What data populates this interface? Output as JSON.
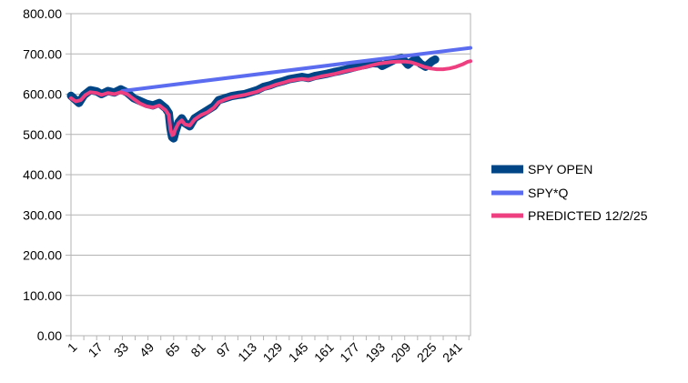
{
  "chart_data": {
    "type": "line",
    "title": "",
    "xlabel": "",
    "ylabel": "",
    "ylim": [
      0,
      800
    ],
    "yticks": [
      "0.00",
      "100.00",
      "200.00",
      "300.00",
      "400.00",
      "500.00",
      "600.00",
      "700.00",
      "800.00"
    ],
    "xlim": [
      1,
      250
    ],
    "xticks": [
      "1",
      "17",
      "33",
      "49",
      "65",
      "81",
      "97",
      "113",
      "129",
      "145",
      "161",
      "177",
      "193",
      "209",
      "225",
      "241"
    ],
    "grid": "horizontal",
    "legend_position": "right",
    "series": [
      {
        "name": "SPY OPEN",
        "color": "#004586",
        "points": [
          [
            1,
            596
          ],
          [
            4,
            585
          ],
          [
            6,
            578
          ],
          [
            9,
            597
          ],
          [
            13,
            610
          ],
          [
            17,
            607
          ],
          [
            20,
            600
          ],
          [
            24,
            608
          ],
          [
            28,
            604
          ],
          [
            32,
            612
          ],
          [
            36,
            604
          ],
          [
            40,
            590
          ],
          [
            44,
            583
          ],
          [
            48,
            576
          ],
          [
            52,
            572
          ],
          [
            56,
            578
          ],
          [
            60,
            565
          ],
          [
            62,
            553
          ],
          [
            63,
            515
          ],
          [
            64,
            493
          ],
          [
            65,
            490
          ],
          [
            66,
            505
          ],
          [
            68,
            530
          ],
          [
            70,
            540
          ],
          [
            72,
            528
          ],
          [
            75,
            520
          ],
          [
            78,
            540
          ],
          [
            82,
            550
          ],
          [
            86,
            560
          ],
          [
            90,
            570
          ],
          [
            93,
            585
          ],
          [
            97,
            590
          ],
          [
            101,
            595
          ],
          [
            105,
            598
          ],
          [
            109,
            600
          ],
          [
            113,
            605
          ],
          [
            117,
            610
          ],
          [
            121,
            618
          ],
          [
            125,
            622
          ],
          [
            129,
            628
          ],
          [
            133,
            632
          ],
          [
            137,
            637
          ],
          [
            141,
            640
          ],
          [
            145,
            643
          ],
          [
            149,
            640
          ],
          [
            153,
            645
          ],
          [
            157,
            648
          ],
          [
            161,
            651
          ],
          [
            165,
            655
          ],
          [
            169,
            658
          ],
          [
            173,
            662
          ],
          [
            177,
            666
          ],
          [
            181,
            670
          ],
          [
            185,
            673
          ],
          [
            189,
            677
          ],
          [
            193,
            676
          ],
          [
            195,
            670
          ],
          [
            199,
            678
          ],
          [
            203,
            686
          ],
          [
            207,
            690
          ],
          [
            209,
            682
          ],
          [
            211,
            673
          ],
          [
            213,
            680
          ],
          [
            216,
            688
          ],
          [
            219,
            675
          ],
          [
            222,
            668
          ],
          [
            224,
            675
          ],
          [
            226,
            682
          ],
          [
            228,
            686
          ]
        ]
      },
      {
        "name": "SPY*Q",
        "color": "#5b6cf0",
        "points": [
          [
            33,
            608
          ],
          [
            250,
            715
          ]
        ]
      },
      {
        "name": "PREDICTED 12/2/25",
        "color": "#ee4080",
        "points": [
          [
            1,
            590
          ],
          [
            4,
            582
          ],
          [
            7,
            585
          ],
          [
            10,
            598
          ],
          [
            13,
            605
          ],
          [
            17,
            603
          ],
          [
            20,
            598
          ],
          [
            24,
            603
          ],
          [
            28,
            600
          ],
          [
            32,
            605
          ],
          [
            36,
            600
          ],
          [
            40,
            588
          ],
          [
            44,
            577
          ],
          [
            48,
            570
          ],
          [
            52,
            567
          ],
          [
            56,
            572
          ],
          [
            60,
            560
          ],
          [
            62,
            548
          ],
          [
            63,
            512
          ],
          [
            64,
            498
          ],
          [
            65,
            500
          ],
          [
            66,
            512
          ],
          [
            68,
            528
          ],
          [
            70,
            535
          ],
          [
            72,
            525
          ],
          [
            75,
            522
          ],
          [
            78,
            537
          ],
          [
            82,
            548
          ],
          [
            86,
            555
          ],
          [
            90,
            566
          ],
          [
            93,
            580
          ],
          [
            97,
            587
          ],
          [
            101,
            592
          ],
          [
            105,
            595
          ],
          [
            109,
            598
          ],
          [
            113,
            602
          ],
          [
            117,
            606
          ],
          [
            121,
            613
          ],
          [
            125,
            618
          ],
          [
            129,
            624
          ],
          [
            133,
            628
          ],
          [
            137,
            633
          ],
          [
            141,
            636
          ],
          [
            145,
            638
          ],
          [
            149,
            636
          ],
          [
            153,
            640
          ],
          [
            157,
            644
          ],
          [
            161,
            647
          ],
          [
            165,
            650
          ],
          [
            169,
            654
          ],
          [
            173,
            658
          ],
          [
            177,
            661
          ],
          [
            181,
            664
          ],
          [
            185,
            668
          ],
          [
            189,
            672
          ],
          [
            193,
            676
          ],
          [
            197,
            678
          ],
          [
            201,
            680
          ],
          [
            205,
            681
          ],
          [
            209,
            681
          ],
          [
            213,
            679
          ],
          [
            217,
            674
          ],
          [
            221,
            668
          ],
          [
            225,
            664
          ],
          [
            229,
            662
          ],
          [
            233,
            662
          ],
          [
            237,
            664
          ],
          [
            241,
            668
          ],
          [
            245,
            674
          ],
          [
            248,
            680
          ],
          [
            250,
            682
          ]
        ]
      }
    ]
  }
}
